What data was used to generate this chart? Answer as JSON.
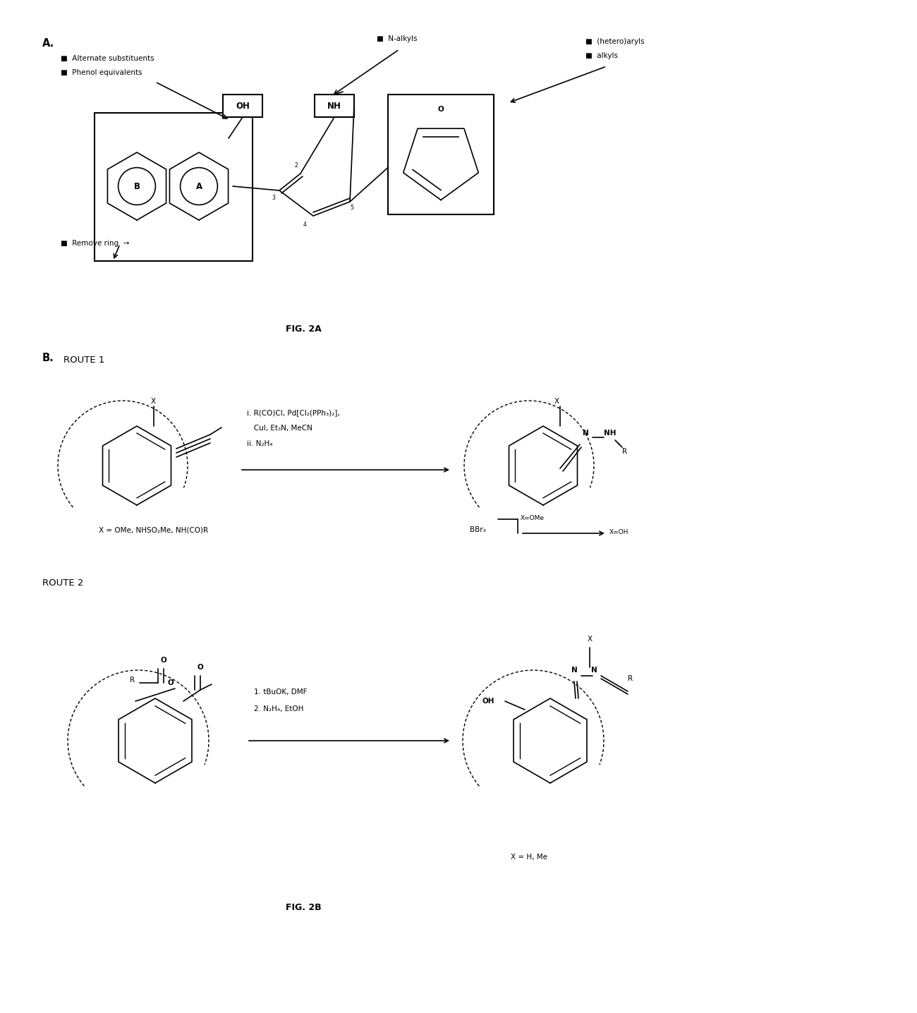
{
  "background_color": "#ffffff",
  "fig_width": 12.4,
  "fig_height": 13.76,
  "panel_A_label": "A.",
  "panel_B_label": "B.",
  "fig2A_caption": "FIG. 2A",
  "fig2B_caption": "FIG. 2B",
  "route1_label": "ROUTE 1",
  "route2_label": "ROUTE 2",
  "ann_alt_sub": "■  Alternate substituents",
  "ann_phenol": "■  Phenol equivalents",
  "ann_remove": "■  Remove ring  →",
  "ann_nalkyls": "■  N-alkyls",
  "ann_heteroaryls": "■  (hetero)aryls",
  "ann_alkyls": "■  alkyls",
  "route1_reagents1": "i. R(CO)Cl, Pd[Cl₂(PPh₃)₂],",
  "route1_reagents2": "   CuI, Et₃N, MeCN",
  "route1_reagents3": "ii. N₂H₄",
  "route1_x_label": "X = OMe, NHSO₂Me, NH(CO)R",
  "route1_bbr3": "BBr₃",
  "route1_xome": "X=OMe",
  "route1_xoh": "X=OH",
  "route2_reagents1": "1. tBuOK, DMF",
  "route2_reagents2": "2. N₂H₄, EtOH",
  "route2_x_label": "X = H, Me"
}
